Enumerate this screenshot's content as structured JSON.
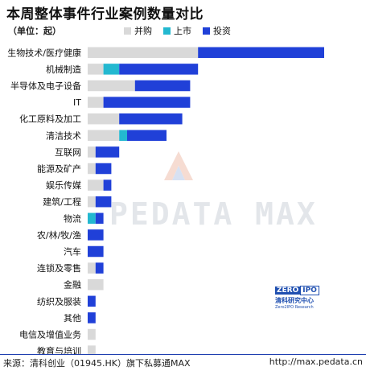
{
  "title": "本周整体事件行业案例数量对比",
  "unit": "（单位：起）",
  "colors": {
    "merger": "#d9d9d9",
    "listing": "#23b8d0",
    "investment": "#2040d8",
    "footer_rule": "#1f3fb0"
  },
  "chart_data": {
    "type": "bar",
    "orientation": "horizontal",
    "stacked": true,
    "legend_position": "top",
    "grid": false,
    "categories": [
      "生物技术/医疗健康",
      "机械制造",
      "半导体及电子设备",
      "IT",
      "化工原料及加工",
      "清洁技术",
      "互联网",
      "能源及矿产",
      "娱乐传媒",
      "建筑/工程",
      "物流",
      "农/林/牧/渔",
      "汽车",
      "连锁及零售",
      "金融",
      "纺织及服装",
      "其他",
      "电信及增值业务",
      "教育与培训"
    ],
    "series": [
      {
        "name": "并购",
        "color": "#d9d9d9",
        "values": [
          14,
          2,
          6,
          2,
          4,
          4,
          1,
          1,
          2,
          1,
          0,
          0,
          0,
          1,
          2,
          0,
          0,
          1,
          1
        ]
      },
      {
        "name": "上市",
        "color": "#23b8d0",
        "values": [
          0,
          2,
          0,
          0,
          0,
          1,
          0,
          0,
          0,
          0,
          1,
          0,
          0,
          0,
          0,
          0,
          0,
          0,
          0
        ]
      },
      {
        "name": "投资",
        "color": "#2040d8",
        "values": [
          16,
          10,
          7,
          11,
          8,
          5,
          3,
          2,
          1,
          2,
          1,
          2,
          2,
          1,
          0,
          1,
          1,
          0,
          0
        ]
      }
    ]
  },
  "watermark": "PEDATA MAX",
  "brand": {
    "badge_left": "ZERO",
    "badge_right": "IPO",
    "name_cn": "清科研究中心",
    "name_en": "Zero2IPO Research"
  },
  "footer": {
    "source": "来源：清科创业（01945.HK）旗下私募通MAX",
    "url": "http://max.pedata.cn"
  }
}
